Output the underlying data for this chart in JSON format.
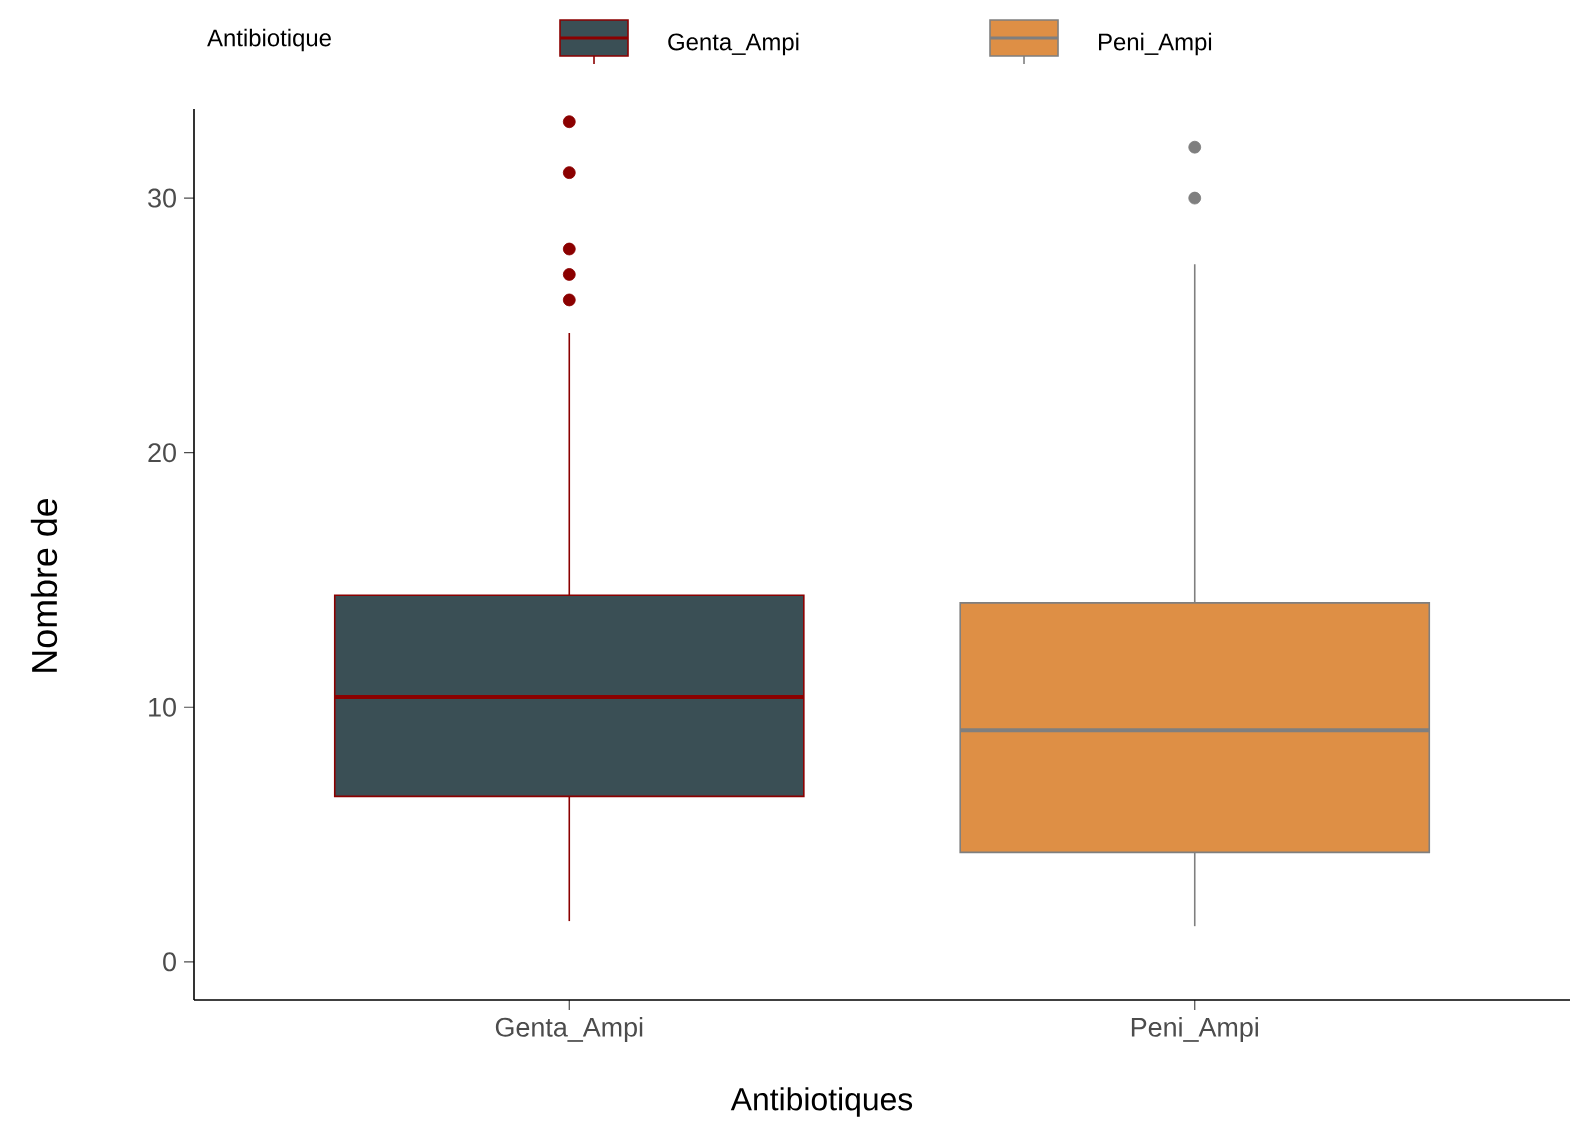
{
  "chart_data": {
    "type": "box",
    "xlabel": "Antibiotiques",
    "ylabel": "Nombre de",
    "legend_title": "Antibiotique",
    "legend": "top",
    "categories": [
      "Genta_Ampi",
      "Peni_Ampi"
    ],
    "series": [
      {
        "name": "Genta_Ampi",
        "color": "#3a4f55",
        "boxes": [
          {
            "low": 1.6,
            "q1": 6.5,
            "median": 10.4,
            "q3": 14.4,
            "high": 24.7,
            "outliers": [
              26,
              27,
              28,
              31,
              33
            ]
          },
          null
        ]
      },
      {
        "name": "Peni_Ampi",
        "color": "#de8f45",
        "boxes": [
          null,
          {
            "low": 1.4,
            "q1": 4.3,
            "median": 9.1,
            "q3": 14.1,
            "high": 27.4,
            "outliers": [
              30,
              32
            ]
          }
        ]
      }
    ],
    "ylim": [
      -1.5,
      33.5
    ],
    "yticks": [
      0,
      10,
      20,
      30
    ]
  }
}
